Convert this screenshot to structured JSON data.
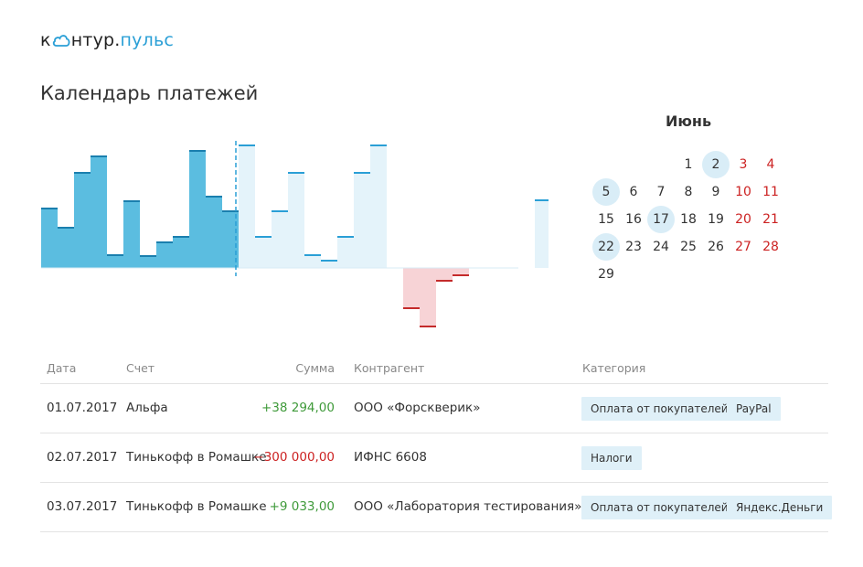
{
  "logo": {
    "part1": "к",
    "part2": "нтур",
    "dot": ".",
    "part3": "пульс"
  },
  "page_title": "Календарь платежей",
  "calendar": {
    "month": "Июнь",
    "start_col": 3,
    "days": [
      {
        "d": "1"
      },
      {
        "d": "2",
        "hl": true
      },
      {
        "d": "3",
        "we": true
      },
      {
        "d": "4",
        "we": true
      },
      {
        "d": "5",
        "hl": true
      },
      {
        "d": "6"
      },
      {
        "d": "7"
      },
      {
        "d": "8"
      },
      {
        "d": "9"
      },
      {
        "d": "10",
        "we": true
      },
      {
        "d": "11",
        "we": true
      },
      {
        "d": "15"
      },
      {
        "d": "16"
      },
      {
        "d": "17",
        "hl": true
      },
      {
        "d": "18"
      },
      {
        "d": "19"
      },
      {
        "d": "20",
        "we": true
      },
      {
        "d": "21",
        "we": true
      },
      {
        "d": "22",
        "hl": true
      },
      {
        "d": "23"
      },
      {
        "d": "24"
      },
      {
        "d": "25"
      },
      {
        "d": "26"
      },
      {
        "d": "27",
        "we": true
      },
      {
        "d": "28",
        "we": true
      },
      {
        "d": "29"
      }
    ]
  },
  "chart_data": {
    "type": "bar",
    "colors": {
      "past": "#5bbde0",
      "past_top": "#1a7fae",
      "future": "#e4f3fa",
      "future_top": "#2a9fd6",
      "negative": "#f7d3d6",
      "negative_top": "#c42b2b",
      "today_line": "#2a9fd6"
    },
    "today_index": 12,
    "values": [
      65,
      44,
      104,
      122,
      14,
      73,
      13,
      28,
      34,
      128,
      78,
      62,
      134,
      34,
      62,
      104,
      14,
      8,
      34,
      104,
      134,
      0,
      -44,
      -64,
      -14,
      -8,
      0,
      0,
      0,
      0,
      74,
      44
    ],
    "ylim": [
      -70,
      140
    ]
  },
  "table": {
    "headers": {
      "date": "Дата",
      "account": "Счет",
      "amount": "Сумма",
      "counterparty": "Контрагент",
      "category": "Категория"
    },
    "rows": [
      {
        "date": "01.07.2017",
        "account": "Альфа",
        "amount": "+38 294,00",
        "sign": "pos",
        "counterparty": "ООО «Форсквери­к»",
        "tags": [
          "Оплата от покупателей",
          "PayPal"
        ]
      },
      {
        "date": "02.07.2017",
        "account": "Тинькофф в Ромашке",
        "amount": "−300 000,00",
        "sign": "neg",
        "counterparty": "ИФНС 6608",
        "tags": [
          "Налоги"
        ]
      },
      {
        "date": "03.07.2017",
        "account": "Тинькофф в Ромашке",
        "amount": "+9 033,00",
        "sign": "pos",
        "counterparty": "ООО «Лаборатория тестирования»",
        "tags": [
          "Оплата от покупателей",
          "Яндекс.Деньги"
        ]
      }
    ]
  }
}
